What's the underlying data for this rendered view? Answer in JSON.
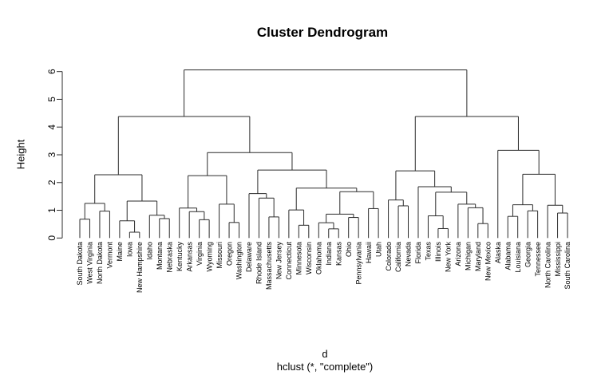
{
  "title": "Cluster Dendrogram",
  "ylabel": "Height",
  "xlabel": "d",
  "subtitle": "hclust (*, \"complete\")",
  "colors": {
    "line": "#2b2b2b",
    "text": "#000000",
    "background": "#ffffff"
  },
  "chart_data": {
    "type": "dendrogram",
    "title": "Cluster Dendrogram",
    "ylabel": "Height",
    "xlabel": "d",
    "method_caption": "hclust (*, \"complete\")",
    "ylim": [
      0,
      6
    ],
    "yticks": [
      "0",
      "1",
      "2",
      "3",
      "4",
      "5",
      "6"
    ],
    "grid": false,
    "leaves": [
      "South Dakota",
      "West Virginia",
      "North Dakota",
      "Vermont",
      "Maine",
      "Iowa",
      "New Hampshire",
      "Idaho",
      "Montana",
      "Nebraska",
      "Kentucky",
      "Arkansas",
      "Virginia",
      "Wyoming",
      "Missouri",
      "Oregon",
      "Washington",
      "Delaware",
      "Rhode Island",
      "Massachusetts",
      "New Jersey",
      "Connecticut",
      "Minnesota",
      "Wisconsin",
      "Oklahoma",
      "Indiana",
      "Kansas",
      "Ohio",
      "Pennsylvania",
      "Hawaii",
      "Utah",
      "Colorado",
      "California",
      "Nevada",
      "Florida",
      "Texas",
      "Illinois",
      "New York",
      "Arizona",
      "Michigan",
      "Maryland",
      "New Mexico",
      "Alaska",
      "Alabama",
      "Louisiana",
      "Georgia",
      "Tennessee",
      "North Carolina",
      "Mississippi",
      "South Carolina"
    ],
    "tree": {
      "h": 6.06,
      "c": [
        {
          "h": 4.38,
          "c": [
            {
              "h": 2.28,
              "c": [
                {
                  "h": 1.25,
                  "c": [
                    {
                      "h": 0.68,
                      "c": [
                        {
                          "n": "South Dakota"
                        },
                        {
                          "n": "West Virginia"
                        }
                      ]
                    },
                    {
                      "h": 0.97,
                      "c": [
                        {
                          "n": "North Dakota"
                        },
                        {
                          "n": "Vermont"
                        }
                      ]
                    }
                  ]
                },
                {
                  "h": 1.33,
                  "c": [
                    {
                      "h": 0.62,
                      "c": [
                        {
                          "n": "Maine"
                        },
                        {
                          "h": 0.21,
                          "c": [
                            {
                              "n": "Iowa"
                            },
                            {
                              "n": "New Hampshire"
                            }
                          ]
                        }
                      ]
                    },
                    {
                      "h": 0.82,
                      "c": [
                        {
                          "n": "Idaho"
                        },
                        {
                          "h": 0.7,
                          "c": [
                            {
                              "n": "Montana"
                            },
                            {
                              "n": "Nebraska"
                            }
                          ]
                        }
                      ]
                    }
                  ]
                }
              ]
            },
            {
              "h": 3.08,
              "c": [
                {
                  "h": 2.25,
                  "c": [
                    {
                      "h": 1.08,
                      "c": [
                        {
                          "n": "Kentucky"
                        },
                        {
                          "h": 0.95,
                          "c": [
                            {
                              "n": "Arkansas"
                            },
                            {
                              "h": 0.66,
                              "c": [
                                {
                                  "n": "Virginia"
                                },
                                {
                                  "n": "Wyoming"
                                }
                              ]
                            }
                          ]
                        }
                      ]
                    },
                    {
                      "h": 1.22,
                      "c": [
                        {
                          "n": "Missouri"
                        },
                        {
                          "h": 0.56,
                          "c": [
                            {
                              "n": "Oregon"
                            },
                            {
                              "n": "Washington"
                            }
                          ]
                        }
                      ]
                    }
                  ]
                },
                {
                  "h": 2.45,
                  "c": [
                    {
                      "h": 1.6,
                      "c": [
                        {
                          "n": "Delaware"
                        },
                        {
                          "h": 1.44,
                          "c": [
                            {
                              "n": "Rhode Island"
                            },
                            {
                              "h": 0.76,
                              "c": [
                                {
                                  "n": "Massachusetts"
                                },
                                {
                                  "n": "New Jersey"
                                }
                              ]
                            }
                          ]
                        }
                      ]
                    },
                    {
                      "h": 1.8,
                      "c": [
                        {
                          "h": 1.01,
                          "c": [
                            {
                              "n": "Connecticut"
                            },
                            {
                              "h": 0.46,
                              "c": [
                                {
                                  "n": "Minnesota"
                                },
                                {
                                  "n": "Wisconsin"
                                }
                              ]
                            }
                          ]
                        },
                        {
                          "h": 1.67,
                          "c": [
                            {
                              "h": 0.86,
                              "c": [
                                {
                                  "h": 0.55,
                                  "c": [
                                    {
                                      "n": "Oklahoma"
                                    },
                                    {
                                      "h": 0.33,
                                      "c": [
                                        {
                                          "n": "Indiana"
                                        },
                                        {
                                          "n": "Kansas"
                                        }
                                      ]
                                    }
                                  ]
                                },
                                {
                                  "h": 0.74,
                                  "c": [
                                    {
                                      "n": "Ohio"
                                    },
                                    {
                                      "n": "Pennsylvania"
                                    }
                                  ]
                                }
                              ]
                            },
                            {
                              "h": 1.06,
                              "c": [
                                {
                                  "n": "Hawaii"
                                },
                                {
                                  "n": "Utah"
                                }
                              ]
                            }
                          ]
                        }
                      ]
                    }
                  ]
                }
              ]
            }
          ]
        },
        {
          "h": 4.38,
          "c": [
            {
              "h": 2.42,
              "c": [
                {
                  "h": 1.37,
                  "c": [
                    {
                      "n": "Colorado"
                    },
                    {
                      "h": 1.16,
                      "c": [
                        {
                          "n": "California"
                        },
                        {
                          "n": "Nevada"
                        }
                      ]
                    }
                  ]
                },
                {
                  "h": 1.85,
                  "c": [
                    {
                      "n": "Florida"
                    },
                    {
                      "h": 1.65,
                      "c": [
                        {
                          "h": 0.8,
                          "c": [
                            {
                              "n": "Texas"
                            },
                            {
                              "h": 0.34,
                              "c": [
                                {
                                  "n": "Illinois"
                                },
                                {
                                  "n": "New York"
                                }
                              ]
                            }
                          ]
                        },
                        {
                          "h": 1.22,
                          "c": [
                            {
                              "n": "Arizona"
                            },
                            {
                              "h": 1.09,
                              "c": [
                                {
                                  "n": "Michigan"
                                },
                                {
                                  "h": 0.52,
                                  "c": [
                                    {
                                      "n": "Maryland"
                                    },
                                    {
                                      "n": "New Mexico"
                                    }
                                  ]
                                }
                              ]
                            }
                          ]
                        }
                      ]
                    }
                  ]
                }
              ]
            },
            {
              "h": 3.16,
              "c": [
                {
                  "n": "Alaska"
                },
                {
                  "h": 2.3,
                  "c": [
                    {
                      "h": 1.2,
                      "c": [
                        {
                          "h": 0.78,
                          "c": [
                            {
                              "n": "Alabama"
                            },
                            {
                              "n": "Louisiana"
                            }
                          ]
                        },
                        {
                          "h": 0.98,
                          "c": [
                            {
                              "n": "Georgia"
                            },
                            {
                              "n": "Tennessee"
                            }
                          ]
                        }
                      ]
                    },
                    {
                      "h": 1.18,
                      "c": [
                        {
                          "n": "North Carolina"
                        },
                        {
                          "h": 0.9,
                          "c": [
                            {
                              "n": "Mississippi"
                            },
                            {
                              "n": "South Carolina"
                            }
                          ]
                        }
                      ]
                    }
                  ]
                }
              ]
            }
          ]
        }
      ]
    }
  }
}
